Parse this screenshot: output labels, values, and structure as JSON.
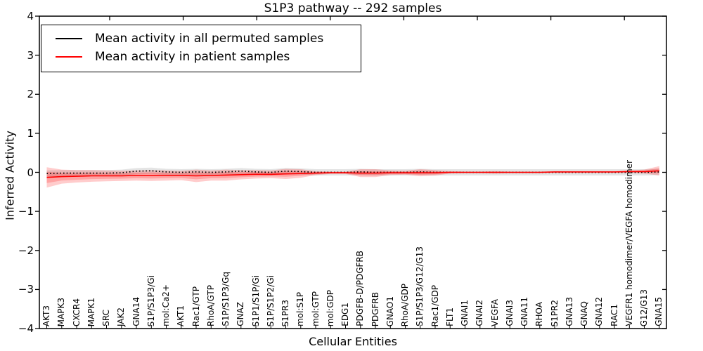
{
  "figure": {
    "title": "S1P3 pathway -- 292 samples",
    "xlabel": "Cellular Entities",
    "ylabel": "Inferred Activity"
  },
  "legend": {
    "items": [
      {
        "label": "Mean activity in all permuted samples",
        "color": "#000000"
      },
      {
        "label": "Mean activity in patient samples",
        "color": "#ff0000"
      }
    ]
  },
  "chart_data": {
    "type": "line",
    "title": "S1P3 pathway -- 292 samples",
    "xlabel": "Cellular Entities",
    "ylabel": "Inferred Activity",
    "ylim": [
      -4,
      4
    ],
    "yticks": [
      4,
      3,
      2,
      1,
      0,
      -1,
      -2,
      -3,
      -4
    ],
    "grid": false,
    "legend_position": "upper left",
    "categories": [
      "AKT3",
      "MAPK3",
      "CXCR4",
      "MAPK1",
      "SRC",
      "JAK2",
      "GNA14",
      "S1P/S1P3/Gi",
      "mol:Ca2+",
      "AKT1",
      "Rac1/GTP",
      "RhoA/GTP",
      "S1P/S1P3/Gq",
      "GNAZ",
      "S1P1/S1P/Gi",
      "S1P/S1P2/Gi",
      "S1PR3",
      "mol:S1P",
      "mol:GTP",
      "mol:GDP",
      "EDG1",
      "PDGFB-D/PDGFRB",
      "PDGFRB",
      "GNAO1",
      "RhoA/GDP",
      "S1P/S1P3/G12/G13",
      "Rac1/GDP",
      "FLT1",
      "GNAI1",
      "GNAI2",
      "VEGFA",
      "GNAI3",
      "GNA11",
      "RHOA",
      "S1PR2",
      "GNA13",
      "GNAQ",
      "GNA12",
      "RAC1",
      "VEGFR1 homodimer/VEGFA homodimer",
      "G12/G13",
      "GNA15"
    ],
    "series": [
      {
        "name": "Mean activity in all permuted samples",
        "color": "#000000",
        "line_style": "dotted",
        "band_color": "rgba(130,130,130,0.22)",
        "mean": [
          -0.03,
          -0.02,
          -0.02,
          -0.02,
          -0.02,
          -0.01,
          0.03,
          0.04,
          0.01,
          0.0,
          0.01,
          0.0,
          0.01,
          0.03,
          0.01,
          0.0,
          0.03,
          0.02,
          0.0,
          0.0,
          0.0,
          0.01,
          0.0,
          0.0,
          0.0,
          0.01,
          0.0,
          0.0,
          0.0,
          0.0,
          0.0,
          0.0,
          0.0,
          0.0,
          0.0,
          0.0,
          0.0,
          0.0,
          0.0,
          0.0,
          0.0,
          0.01
        ],
        "std": 0.08
      },
      {
        "name": "Mean activity in patient samples",
        "color": "#ff0000",
        "line_style": "solid",
        "band_color": "rgba(255,0,0,0.20)",
        "mean": [
          -0.13,
          -0.11,
          -0.1,
          -0.09,
          -0.09,
          -0.09,
          -0.08,
          -0.08,
          -0.08,
          -0.08,
          -0.09,
          -0.08,
          -0.07,
          -0.06,
          -0.05,
          -0.05,
          -0.04,
          -0.03,
          -0.02,
          -0.01,
          -0.01,
          -0.02,
          -0.02,
          -0.01,
          -0.01,
          -0.01,
          -0.01,
          0.0,
          0.0,
          0.0,
          0.0,
          0.0,
          0.0,
          0.0,
          0.01,
          0.01,
          0.01,
          0.01,
          0.01,
          0.02,
          0.02,
          0.04
        ],
        "std": [
          0.26,
          0.18,
          0.16,
          0.15,
          0.14,
          0.13,
          0.13,
          0.14,
          0.13,
          0.12,
          0.16,
          0.13,
          0.14,
          0.12,
          0.11,
          0.1,
          0.13,
          0.11,
          0.05,
          0.03,
          0.03,
          0.1,
          0.1,
          0.06,
          0.05,
          0.09,
          0.07,
          0.03,
          0.02,
          0.02,
          0.03,
          0.02,
          0.02,
          0.02,
          0.02,
          0.02,
          0.02,
          0.02,
          0.02,
          0.03,
          0.05,
          0.12
        ]
      }
    ]
  }
}
